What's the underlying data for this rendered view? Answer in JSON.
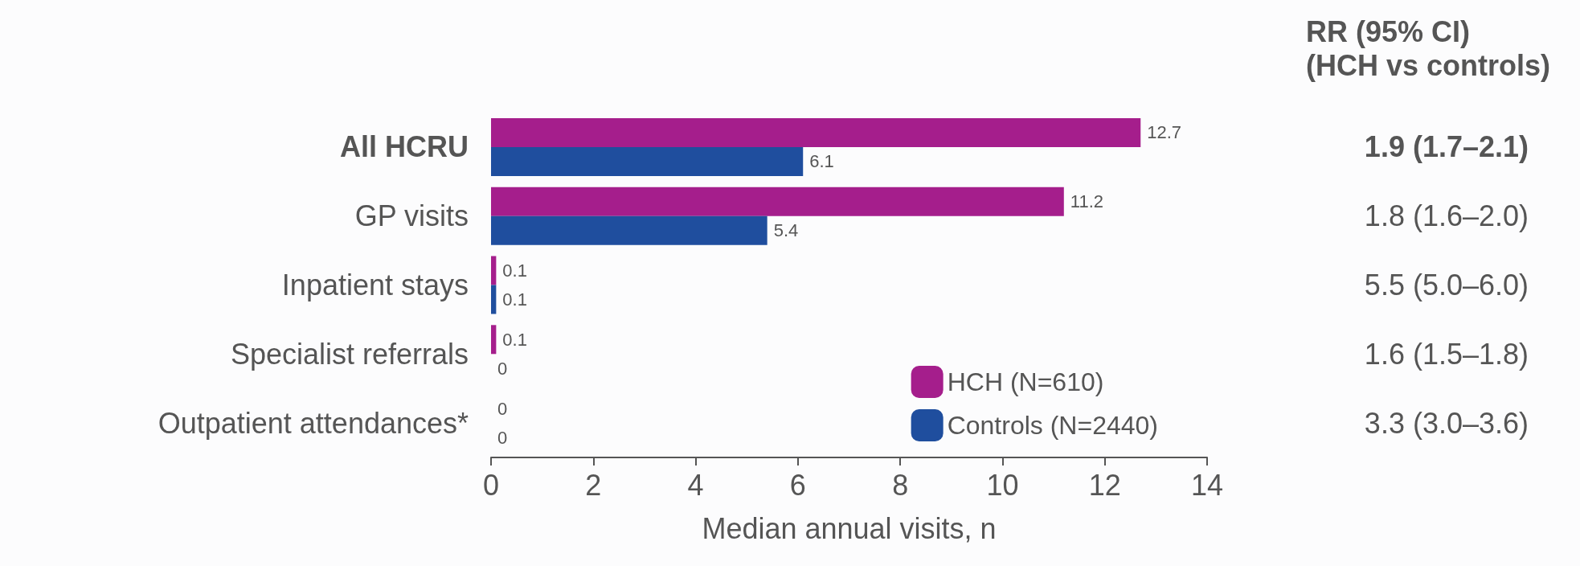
{
  "chart_data": {
    "type": "bar",
    "orientation": "horizontal",
    "xlabel": "Median annual visits, n",
    "categories": [
      "All HCRU",
      "GP visits",
      "Inpatient stays",
      "Specialist referrals",
      "Outpatient attendances*"
    ],
    "series": [
      {
        "name": "HCH (N=610)",
        "color": "#a51e8c",
        "values": [
          12.7,
          11.2,
          0.1,
          0.1,
          0
        ]
      },
      {
        "name": "Controls (N=2440)",
        "color": "#1f4e9e",
        "values": [
          6.1,
          5.4,
          0.1,
          0,
          0
        ]
      }
    ],
    "xlim": [
      0,
      14
    ],
    "xticks": [
      0,
      2,
      4,
      6,
      8,
      10,
      12,
      14
    ],
    "data_labels": true,
    "grid": false,
    "legend": "bottom right",
    "annotations": [
      "RR (95% CI)\n(HCH vs controls)",
      "1.9 (1.7–2.1)",
      "1.8 (1.6–2.0)",
      "5.5 (5.0–6.0)",
      "1.6 (1.5–1.8)",
      "3.3 (3.0–3.6)"
    ]
  }
}
